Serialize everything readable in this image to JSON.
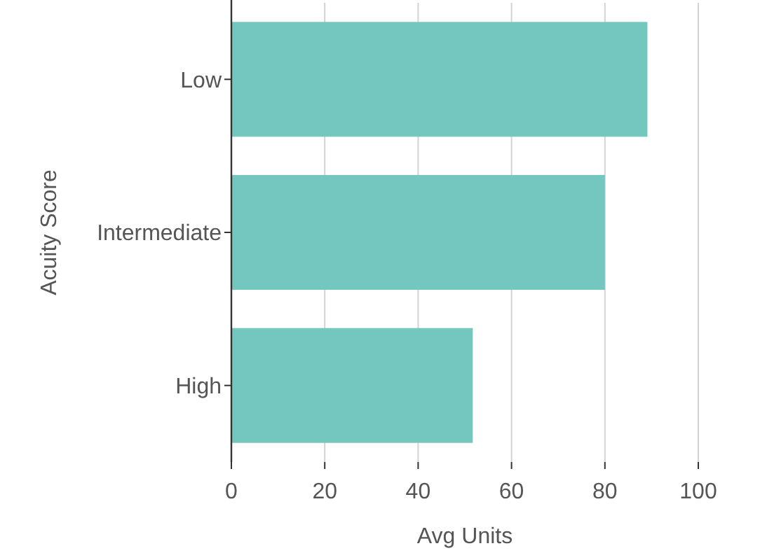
{
  "chart_data": {
    "type": "bar",
    "orientation": "horizontal",
    "categories": [
      "Low",
      "Intermediate",
      "High"
    ],
    "values": [
      89.1,
      80,
      51.7
    ],
    "color": "#74c7bf",
    "xlabel": "Avg Units",
    "ylabel": "Acuity Score",
    "xlim": [
      0,
      100
    ],
    "xticks": [
      0,
      20,
      40,
      60,
      80,
      100
    ],
    "grid": "x"
  }
}
